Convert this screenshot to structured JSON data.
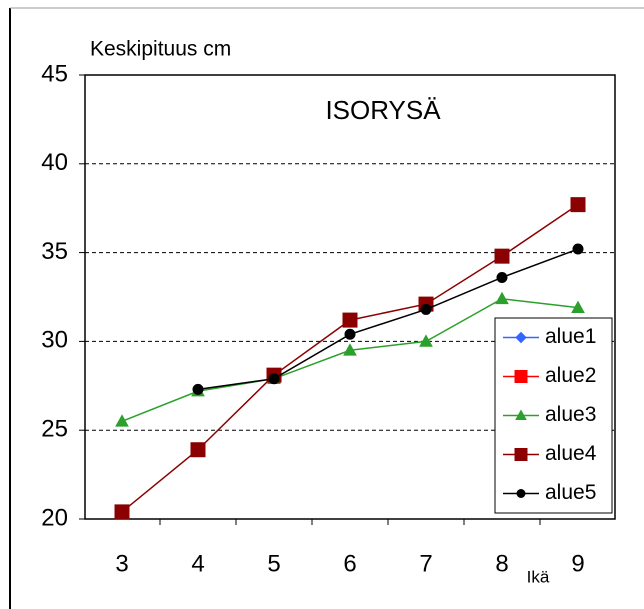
{
  "chart_data": {
    "type": "line",
    "title": "ISORYSÄ",
    "y_label": "Keskipituus cm",
    "x_label": "Ikä",
    "categories": [
      "3",
      "4",
      "5",
      "6",
      "7",
      "8",
      "9"
    ],
    "series": [
      {
        "name": "alue1",
        "color": "#3366ff",
        "marker": "diamond",
        "values": [
          null,
          null,
          null,
          null,
          null,
          null,
          null
        ]
      },
      {
        "name": "alue2",
        "color": "#ff0000",
        "marker": "square",
        "values": [
          null,
          null,
          null,
          null,
          null,
          null,
          null
        ]
      },
      {
        "name": "alue3",
        "color": "#2ca02c",
        "marker": "triangle",
        "values": [
          25.5,
          27.2,
          27.9,
          29.5,
          30.0,
          32.4,
          31.9
        ]
      },
      {
        "name": "alue4",
        "color": "#8b0000",
        "marker": "square",
        "values": [
          20.4,
          23.9,
          28.1,
          31.2,
          32.1,
          34.8,
          37.7
        ]
      },
      {
        "name": "alue5",
        "color": "#000000",
        "marker": "circle",
        "values": [
          null,
          27.3,
          27.9,
          30.4,
          31.8,
          33.6,
          35.2
        ]
      }
    ],
    "ylim": [
      20,
      45
    ],
    "yticks": [
      20,
      25,
      30,
      35,
      40,
      45
    ],
    "grid": true,
    "legend": "right"
  }
}
